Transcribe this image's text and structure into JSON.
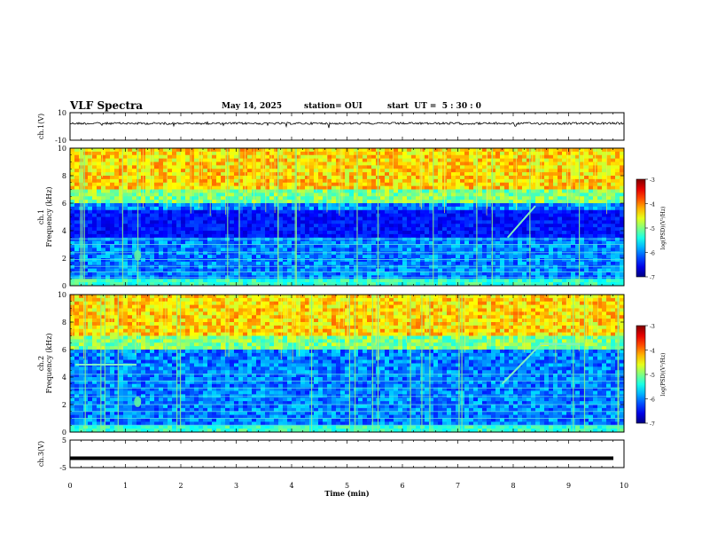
{
  "header": {
    "title": "VLF Spectra",
    "date": "May 14, 2025",
    "station": "station= OUI",
    "start_ut": "start  UT =  5 : 30 : 0"
  },
  "chart_data": [
    {
      "type": "line",
      "name": "ch1-waveform",
      "ylabel": "ch.1(V)",
      "ylim": [
        -10,
        10
      ],
      "y_ticklabels": [
        "10",
        "-10"
      ],
      "xlim": [
        0,
        10
      ],
      "baseline": 2.2,
      "noise_amplitude": 0.8
    },
    {
      "type": "heatmap",
      "name": "ch1-spectrogram",
      "ylabel_top": "ch.1",
      "ylabel": "Frequency  (kHz)",
      "ylim": [
        0,
        10
      ],
      "y_ticklabels": [
        "0",
        "2",
        "4",
        "6",
        "8",
        "10"
      ],
      "xlim": [
        0,
        10
      ],
      "colorbar": {
        "label": "log(PSD)(V²/Hz)",
        "range": [
          -7,
          -3
        ],
        "ticklabels": [
          "-3",
          "-4",
          "-5",
          "-6",
          "-7"
        ]
      },
      "features": [
        {
          "kind": "bright-band",
          "from_khz": 6.5,
          "to_khz": 10
        },
        {
          "kind": "dark-band",
          "from_khz": 3.5,
          "to_khz": 5.5
        },
        {
          "kind": "diagonal-trace",
          "t": [
            7.9,
            8.4
          ],
          "f_khz": [
            3.5,
            5.8
          ]
        }
      ]
    },
    {
      "type": "heatmap",
      "name": "ch2-spectrogram",
      "ylabel_top": "ch.2",
      "ylabel": "Frequency  (kHz)",
      "ylim": [
        0,
        10
      ],
      "y_ticklabels": [
        "0",
        "2",
        "4",
        "6",
        "8",
        "10"
      ],
      "xlim": [
        0,
        10
      ],
      "colorbar": {
        "label": "log(PSD)(V²/Hz)",
        "range": [
          -7,
          -3
        ],
        "ticklabels": [
          "-3",
          "-4",
          "-5",
          "-6",
          "-7"
        ]
      },
      "features": [
        {
          "kind": "bright-band",
          "from_khz": 7,
          "to_khz": 10
        },
        {
          "kind": "horizontal-trace",
          "t": [
            0.1,
            1.2
          ],
          "f_khz": 4.9
        },
        {
          "kind": "diagonal-trace",
          "t": [
            7.8,
            8.5
          ],
          "f_khz": [
            3.5,
            6.4
          ]
        },
        {
          "kind": "horizontal-trace",
          "t": [
            8.5,
            9.2
          ],
          "f_khz": 6.4
        }
      ]
    },
    {
      "type": "line",
      "name": "ch3-waveform",
      "ylabel": "ch.3(V)",
      "ylim": [
        -5,
        5
      ],
      "y_ticklabels": [
        "5",
        "-5"
      ],
      "xlim": [
        0,
        10
      ],
      "baseline": -1.6
    }
  ],
  "x_axis": {
    "label": "Time  (min)",
    "ticklabels": [
      "0",
      "1",
      "2",
      "3",
      "4",
      "5",
      "6",
      "7",
      "8",
      "9",
      "10"
    ]
  }
}
